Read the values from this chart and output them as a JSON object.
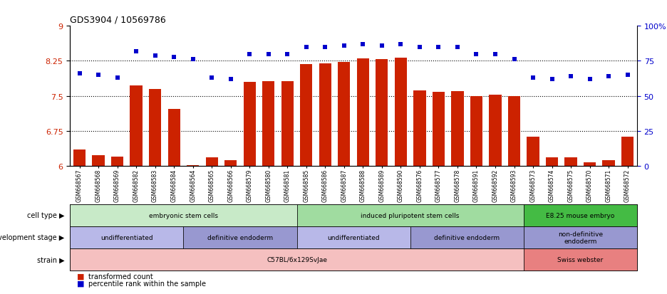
{
  "title": "GDS3904 / 10569786",
  "samples": [
    "GSM668567",
    "GSM668568",
    "GSM668569",
    "GSM668582",
    "GSM668583",
    "GSM668584",
    "GSM668564",
    "GSM668565",
    "GSM668566",
    "GSM668579",
    "GSM668580",
    "GSM668581",
    "GSM668585",
    "GSM668586",
    "GSM668587",
    "GSM668588",
    "GSM668589",
    "GSM668590",
    "GSM668576",
    "GSM668577",
    "GSM668578",
    "GSM668591",
    "GSM668592",
    "GSM668593",
    "GSM668573",
    "GSM668574",
    "GSM668575",
    "GSM668570",
    "GSM668571",
    "GSM668572"
  ],
  "bar_values": [
    6.35,
    6.22,
    6.2,
    7.72,
    7.65,
    7.22,
    6.02,
    6.18,
    6.12,
    7.8,
    7.82,
    7.82,
    8.18,
    8.2,
    8.22,
    8.3,
    8.28,
    8.32,
    7.62,
    7.58,
    7.6,
    7.5,
    7.52,
    7.5,
    6.62,
    6.18,
    6.18,
    6.08,
    6.12,
    6.62
  ],
  "percentile_values": [
    66,
    65,
    63,
    82,
    79,
    78,
    76,
    63,
    62,
    80,
    80,
    80,
    85,
    85,
    86,
    87,
    86,
    87,
    85,
    85,
    85,
    80,
    80,
    76,
    63,
    62,
    64,
    62,
    64,
    65
  ],
  "bar_color": "#cc2200",
  "dot_color": "#0000cc",
  "ylim_left": [
    6.0,
    9.0
  ],
  "ylim_right": [
    0,
    100
  ],
  "yticks_left": [
    6.0,
    6.75,
    7.5,
    8.25,
    9.0
  ],
  "ytick_labels_left": [
    "6",
    "6.75",
    "7.5",
    "8.25",
    "9"
  ],
  "yticks_right": [
    0,
    25,
    50,
    75,
    100
  ],
  "ytick_labels_right": [
    "0",
    "25",
    "50",
    "75",
    "100%"
  ],
  "cell_type_groups": [
    {
      "label": "embryonic stem cells",
      "start": 0,
      "end": 11,
      "color": "#c8eac8"
    },
    {
      "label": "induced pluripotent stem cells",
      "start": 12,
      "end": 23,
      "color": "#a0dca0"
    },
    {
      "label": "E8.25 mouse embryo",
      "start": 24,
      "end": 29,
      "color": "#44bb44"
    }
  ],
  "dev_stage_groups": [
    {
      "label": "undifferentiated",
      "start": 0,
      "end": 5,
      "color": "#b8b8e8"
    },
    {
      "label": "definitive endoderm",
      "start": 6,
      "end": 11,
      "color": "#9898d0"
    },
    {
      "label": "undifferentiated",
      "start": 12,
      "end": 17,
      "color": "#b8b8e8"
    },
    {
      "label": "definitive endoderm",
      "start": 18,
      "end": 23,
      "color": "#9898d0"
    },
    {
      "label": "non-definitive\nendoderm",
      "start": 24,
      "end": 29,
      "color": "#9898d0"
    }
  ],
  "strain_groups": [
    {
      "label": "C57BL/6x129SvJae",
      "start": 0,
      "end": 23,
      "color": "#f5c0c0"
    },
    {
      "label": "Swiss webster",
      "start": 24,
      "end": 29,
      "color": "#e88080"
    }
  ],
  "row_labels": [
    "cell type ▶",
    "development stage ▶",
    "strain ▶"
  ]
}
